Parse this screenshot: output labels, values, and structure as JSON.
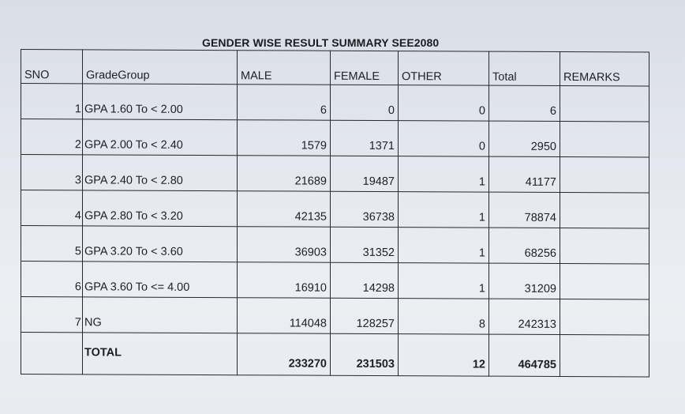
{
  "title": "GENDER WISE RESULT SUMMARY SEE2080",
  "headers": {
    "sno": "SNO",
    "grade_group": "GradeGroup",
    "male": "MALE",
    "female": "FEMALE",
    "other": "OTHER",
    "total": "Total",
    "remarks": "REMARKS"
  },
  "rows": [
    {
      "sno": "1",
      "grade_group": "GPA 1.60 To < 2.00",
      "male": "6",
      "female": "0",
      "other": "0",
      "total": "6",
      "remarks": ""
    },
    {
      "sno": "2",
      "grade_group": "GPA 2.00 To < 2.40",
      "male": "1579",
      "female": "1371",
      "other": "0",
      "total": "2950",
      "remarks": ""
    },
    {
      "sno": "3",
      "grade_group": "GPA 2.40 To < 2.80",
      "male": "21689",
      "female": "19487",
      "other": "1",
      "total": "41177",
      "remarks": ""
    },
    {
      "sno": "4",
      "grade_group": "GPA 2.80 To < 3.20",
      "male": "42135",
      "female": "36738",
      "other": "1",
      "total": "78874",
      "remarks": ""
    },
    {
      "sno": "5",
      "grade_group": "GPA 3.20 To < 3.60",
      "male": "36903",
      "female": "31352",
      "other": "1",
      "total": "68256",
      "remarks": ""
    },
    {
      "sno": "6",
      "grade_group": "GPA 3.60 To <= 4.00",
      "male": "16910",
      "female": "14298",
      "other": "1",
      "total": "31209",
      "remarks": ""
    },
    {
      "sno": "7",
      "grade_group": "NG",
      "male": "114048",
      "female": "128257",
      "other": "8",
      "total": "242313",
      "remarks": ""
    }
  ],
  "totals": {
    "label": "TOTAL",
    "male": "233270",
    "female": "231503",
    "other": "12",
    "total": "464785"
  }
}
